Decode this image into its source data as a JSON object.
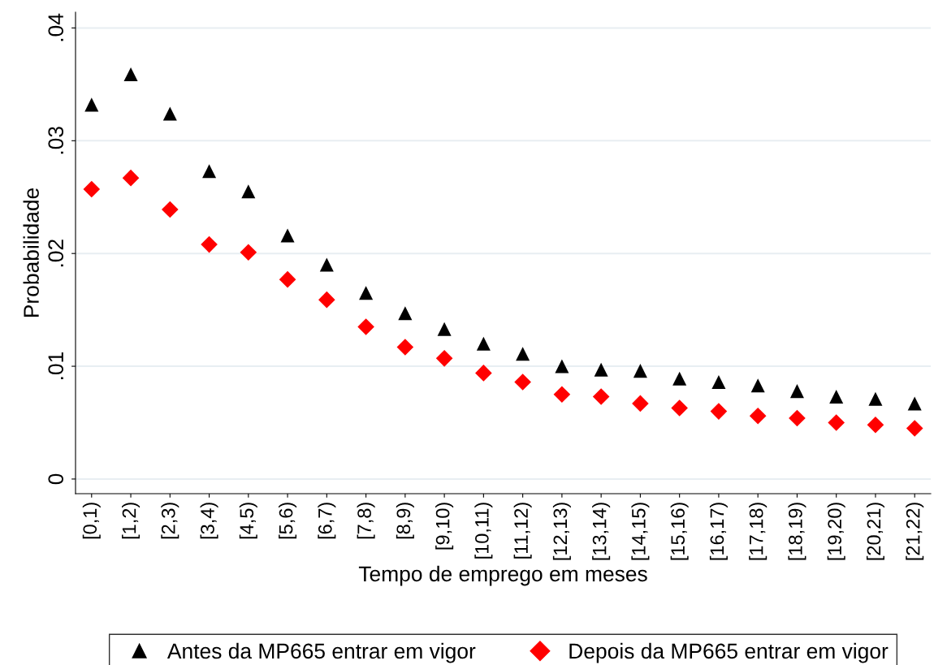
{
  "chart_data": {
    "type": "scatter",
    "xlabel": "Tempo de emprego em meses",
    "ylabel": "Probabilidade",
    "categories": [
      "[0,1)",
      "[1,2)",
      "[2,3)",
      "[3,4)",
      "[4,5)",
      "[5,6)",
      "[6,7)",
      "[7,8)",
      "[8,9)",
      "[9,10)",
      "[10,11)",
      "[11,12)",
      "[12,13)",
      "[13,14)",
      "[14,15)",
      "[15,16)",
      "[16,17)",
      "[17,18)",
      "[18,19)",
      "[19,20)",
      "[20,21)",
      "[21,22)"
    ],
    "series": [
      {
        "name": "Antes da MP665 entrar em vigor",
        "color": "#000000",
        "marker": "triangle",
        "values": [
          0.0332,
          0.0359,
          0.0324,
          0.0273,
          0.0255,
          0.0216,
          0.019,
          0.0165,
          0.0147,
          0.0133,
          0.012,
          0.0111,
          0.01,
          0.0097,
          0.0096,
          0.0089,
          0.0086,
          0.0083,
          0.0078,
          0.0073,
          0.0071,
          0.0067
        ]
      },
      {
        "name": "Depois da MP665 entrar em vigor",
        "color": "#ff0000",
        "marker": "diamond",
        "values": [
          0.0257,
          0.0267,
          0.0239,
          0.0208,
          0.0201,
          0.0177,
          0.0159,
          0.0135,
          0.0117,
          0.0107,
          0.0094,
          0.0086,
          0.0075,
          0.0073,
          0.0067,
          0.0063,
          0.006,
          0.0056,
          0.0054,
          0.005,
          0.0048,
          0.0045
        ]
      }
    ],
    "ylim": [
      -0.0013,
      0.0414
    ],
    "yticks": [
      {
        "value": 0,
        "label": "0"
      },
      {
        "value": 0.01,
        "label": ".01"
      },
      {
        "value": 0.02,
        "label": ".02"
      },
      {
        "value": 0.03,
        "label": ".03"
      },
      {
        "value": 0.04,
        "label": ".04"
      }
    ],
    "grid": "y",
    "legend": "bottom"
  }
}
